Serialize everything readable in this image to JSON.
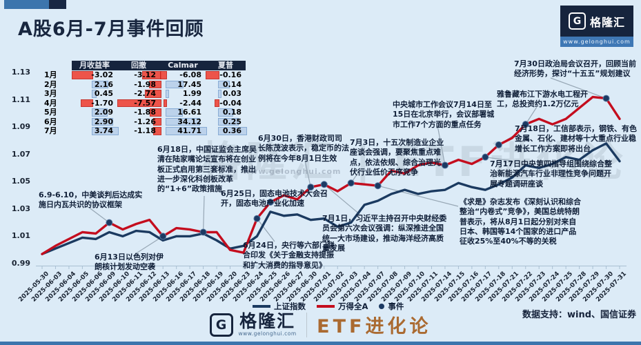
{
  "header": {
    "title": "A股6月-7月事件回顾"
  },
  "brand": {
    "logo_letter": "G",
    "logo_text": "格隆汇",
    "url": "www.gelonghui.com",
    "footer_series": "ETF进化论",
    "data_support": "数据支持：wind、国信证券",
    "watermark": "格隆汇 | ETF进化论",
    "watermark_url": "www.gelonghui.com"
  },
  "table": {
    "headers": [
      "",
      "月收益率",
      "回撤",
      "Calmar",
      "夏普"
    ],
    "rows": [
      {
        "label": "1月",
        "values": [
          -3.02,
          -3.12,
          -6.08,
          -0.16
        ]
      },
      {
        "label": "2月",
        "values": [
          2.16,
          -1.98,
          17.45,
          0.14
        ]
      },
      {
        "label": "3月",
        "values": [
          0.45,
          -2.74,
          1.99,
          0.03
        ]
      },
      {
        "label": "4月",
        "values": [
          -1.7,
          -7.57,
          -2.44,
          -0.04
        ]
      },
      {
        "label": "5月",
        "values": [
          2.09,
          -1.88,
          16.61,
          0.18
        ]
      },
      {
        "label": "6月",
        "values": [
          2.9,
          -1.26,
          34.12,
          0.25
        ]
      },
      {
        "label": "7月",
        "values": [
          3.74,
          -1.18,
          41.71,
          0.36
        ]
      }
    ]
  },
  "chart_data": {
    "type": "line",
    "x": [
      "2025-05-30",
      "2025-06-03",
      "2025-06-04",
      "2025-06-05",
      "2025-06-06",
      "2025-06-09",
      "2025-06-10",
      "2025-06-11",
      "2025-06-12",
      "2025-06-13",
      "2025-06-16",
      "2025-06-17",
      "2025-06-18",
      "2025-06-19",
      "2025-06-20",
      "2025-06-23",
      "2025-06-24",
      "2025-06-25",
      "2025-06-26",
      "2025-06-27",
      "2025-06-30",
      "2025-07-01",
      "2025-07-02",
      "2025-07-03",
      "2025-07-04",
      "2025-07-07",
      "2025-07-08",
      "2025-07-09",
      "2025-07-10",
      "2025-07-11",
      "2025-07-14",
      "2025-07-15",
      "2025-07-16",
      "2025-07-17",
      "2025-07-18",
      "2025-07-21",
      "2025-07-22",
      "2025-07-23",
      "2025-07-24",
      "2025-07-25",
      "2025-07-28",
      "2025-07-29",
      "2025-07-30",
      "2025-07-31"
    ],
    "ylim": [
      0.99,
      1.13
    ],
    "yticks": [
      0.99,
      1.01,
      1.03,
      1.05,
      1.07,
      1.09,
      1.11,
      1.13
    ],
    "grid": false,
    "legend_position": "bottom",
    "series": [
      {
        "name": "上证指数",
        "color": "#1b3a60",
        "values": [
          0.997,
          1.001,
          1.005,
          1.009,
          1.008,
          1.013,
          1.01,
          1.014,
          1.013,
          1.007,
          1.01,
          1.01,
          1.012,
          1.007,
          1.001,
          1.003,
          1.01,
          1.028,
          1.025,
          1.026,
          1.022,
          1.023,
          1.017,
          1.02,
          1.033,
          1.036,
          1.041,
          1.044,
          1.041,
          1.043,
          1.044,
          1.049,
          1.046,
          1.044,
          1.048,
          1.053,
          1.062,
          1.06,
          1.063,
          1.068,
          1.066,
          1.073,
          1.078,
          1.065
        ]
      },
      {
        "name": "万得全A",
        "color": "#c40d1e",
        "values": [
          0.997,
          1.003,
          1.008,
          1.013,
          1.012,
          1.02,
          1.015,
          1.019,
          1.022,
          1.01,
          1.016,
          1.015,
          1.013,
          1.013,
          1.0,
          0.998,
          1.023,
          1.035,
          1.04,
          1.037,
          1.046,
          1.048,
          1.043,
          1.049,
          1.048,
          1.047,
          1.058,
          1.056,
          1.062,
          1.064,
          1.062,
          1.066,
          1.063,
          1.068,
          1.077,
          1.082,
          1.092,
          1.096,
          1.092,
          1.096,
          1.104,
          1.112,
          1.111,
          1.096
        ]
      }
    ],
    "legend": [
      "上证指数",
      "万得全A",
      "事件"
    ],
    "events_on": "万得全A",
    "events": [
      {
        "date": "2025-06-09",
        "label": "6.9-6.10，中美谈判后达成实施日内瓦共识的协议框架"
      },
      {
        "date": "2025-06-13",
        "label": "6月13日以色列对伊朗核计划发动空袭"
      },
      {
        "date": "2025-06-18",
        "label": "6月18日，中国证监会主席吴清在陆家嘴论坛宣布将在创业板正式启用第三套标准，推出进一步深化科创板改革的“1+6”政策措施"
      },
      {
        "date": "2025-06-24",
        "label": "6月24日，央行等六部门联合印发《关于金融支持提振和扩大消费的指导意见》"
      },
      {
        "date": "2025-06-25",
        "label": "6月25日，固态电池技术大会召开，固态电池产业化加速"
      },
      {
        "date": "2025-06-30",
        "label": "6月30日，香港财政司司长陈茂波表示，稳定币的法例将在今年8月1日生效"
      },
      {
        "date": "2025-07-01",
        "label": "7月1日，习近平主持召开中央财经委员会第六次会议强调：纵深推进全国统一大市场建设，推动海洋经济高质量发展"
      },
      {
        "date": "2025-07-03",
        "label": "7月3日，十五次制造业企业座谈会强调，要聚焦重点难点，依法依规、综合治理光伏行业低价无序竞争"
      },
      {
        "date": "2025-07-07",
        "label": "《求是》杂志发布《深刻认识和综合整治“内卷式”竞争》，美国总统特朗普表示，将从8月1日起分别对来自日本、韩国等14个国家的进口产品征收25%至40%不等的关税"
      },
      {
        "date": "2025-07-14",
        "label": "中央城市工作会议7月14日至15日在北京举行，会议部署城市工作7个方面的重点任务"
      },
      {
        "date": "2025-07-17",
        "label": "7月17日中央第四指导组围绕综合整治新能源汽车行业非理性竞争问题开展专题调研座谈"
      },
      {
        "date": "2025-07-18",
        "label": "7月18日，工信部表示，钢铁、有色金属、石化、建材等十大重点行业稳增长工作方案即将出台"
      },
      {
        "date": "2025-07-22",
        "label": "雅鲁藏布江下游水电工程开工，总投资约1.2万亿元"
      },
      {
        "date": "2025-07-30",
        "label": "7月30日政治局会议召开，回顾当前经济形势，探讨“十五五”规划建议"
      }
    ]
  }
}
